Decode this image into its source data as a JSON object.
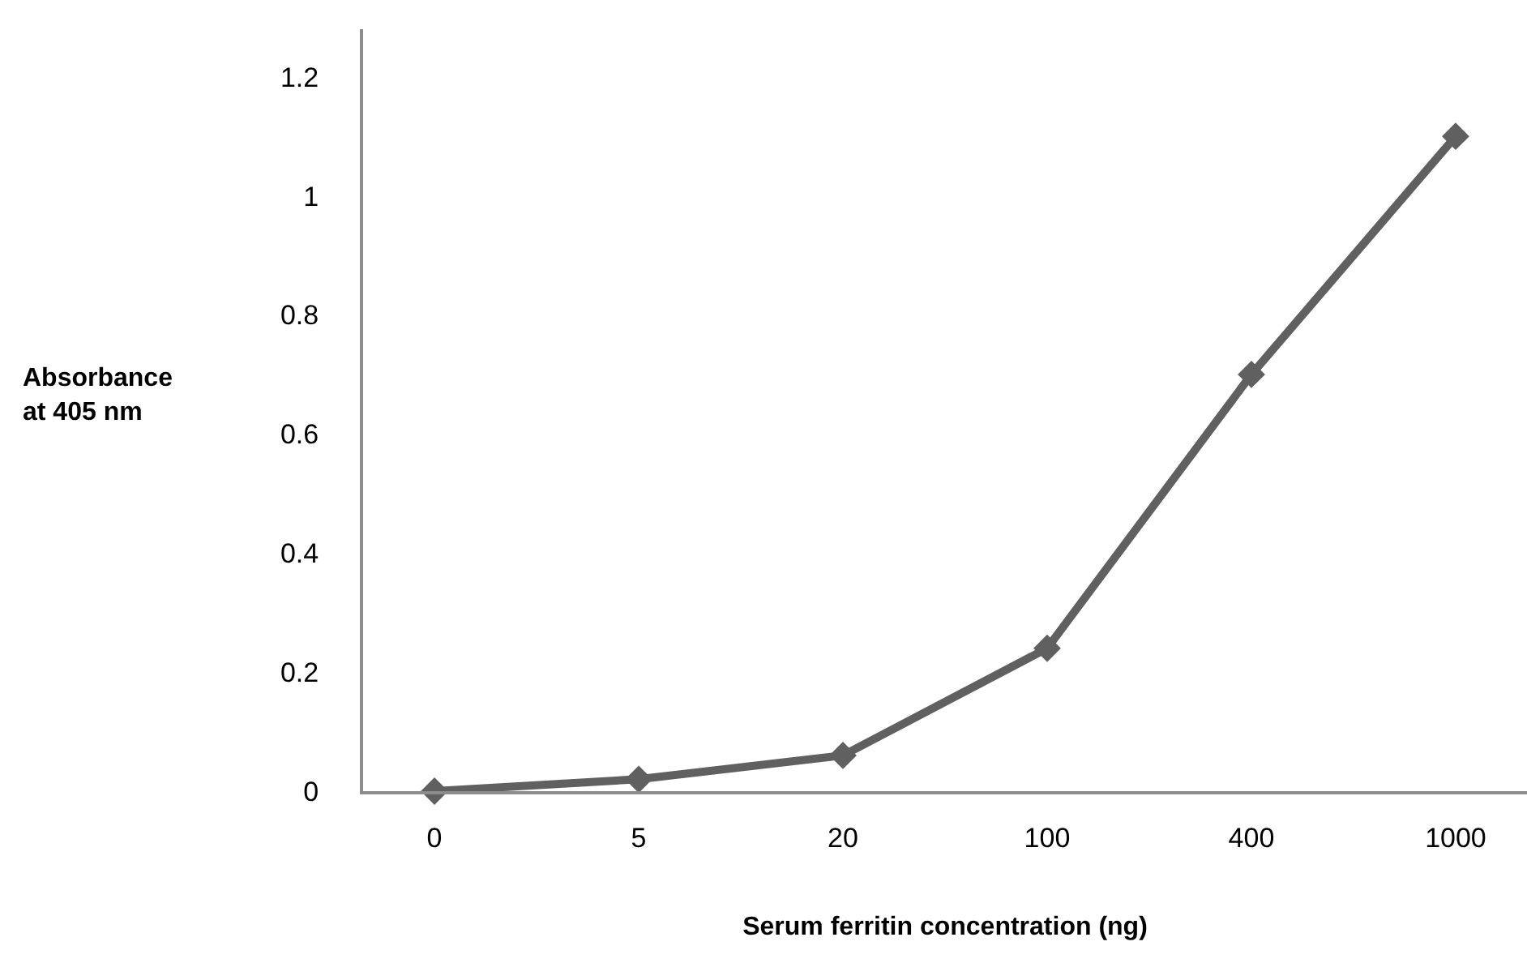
{
  "chart_data": {
    "type": "line",
    "xlabel": "Serum ferritin concentration (ng)",
    "ylabel": "Absorbance\nat 405 nm",
    "categories": [
      "0",
      "5",
      "20",
      "100",
      "400",
      "1000"
    ],
    "series": [
      {
        "color": "#606060",
        "values": [
          0,
          0.02,
          0.06,
          0.24,
          0.7,
          1.1
        ]
      }
    ],
    "ylim": [
      0,
      1.28
    ],
    "yticks": [
      0,
      0.2,
      0.4,
      0.6,
      0.8,
      1,
      1.2
    ],
    "grid": false,
    "legend": false,
    "marker": "diamond",
    "line_style": "solid"
  }
}
